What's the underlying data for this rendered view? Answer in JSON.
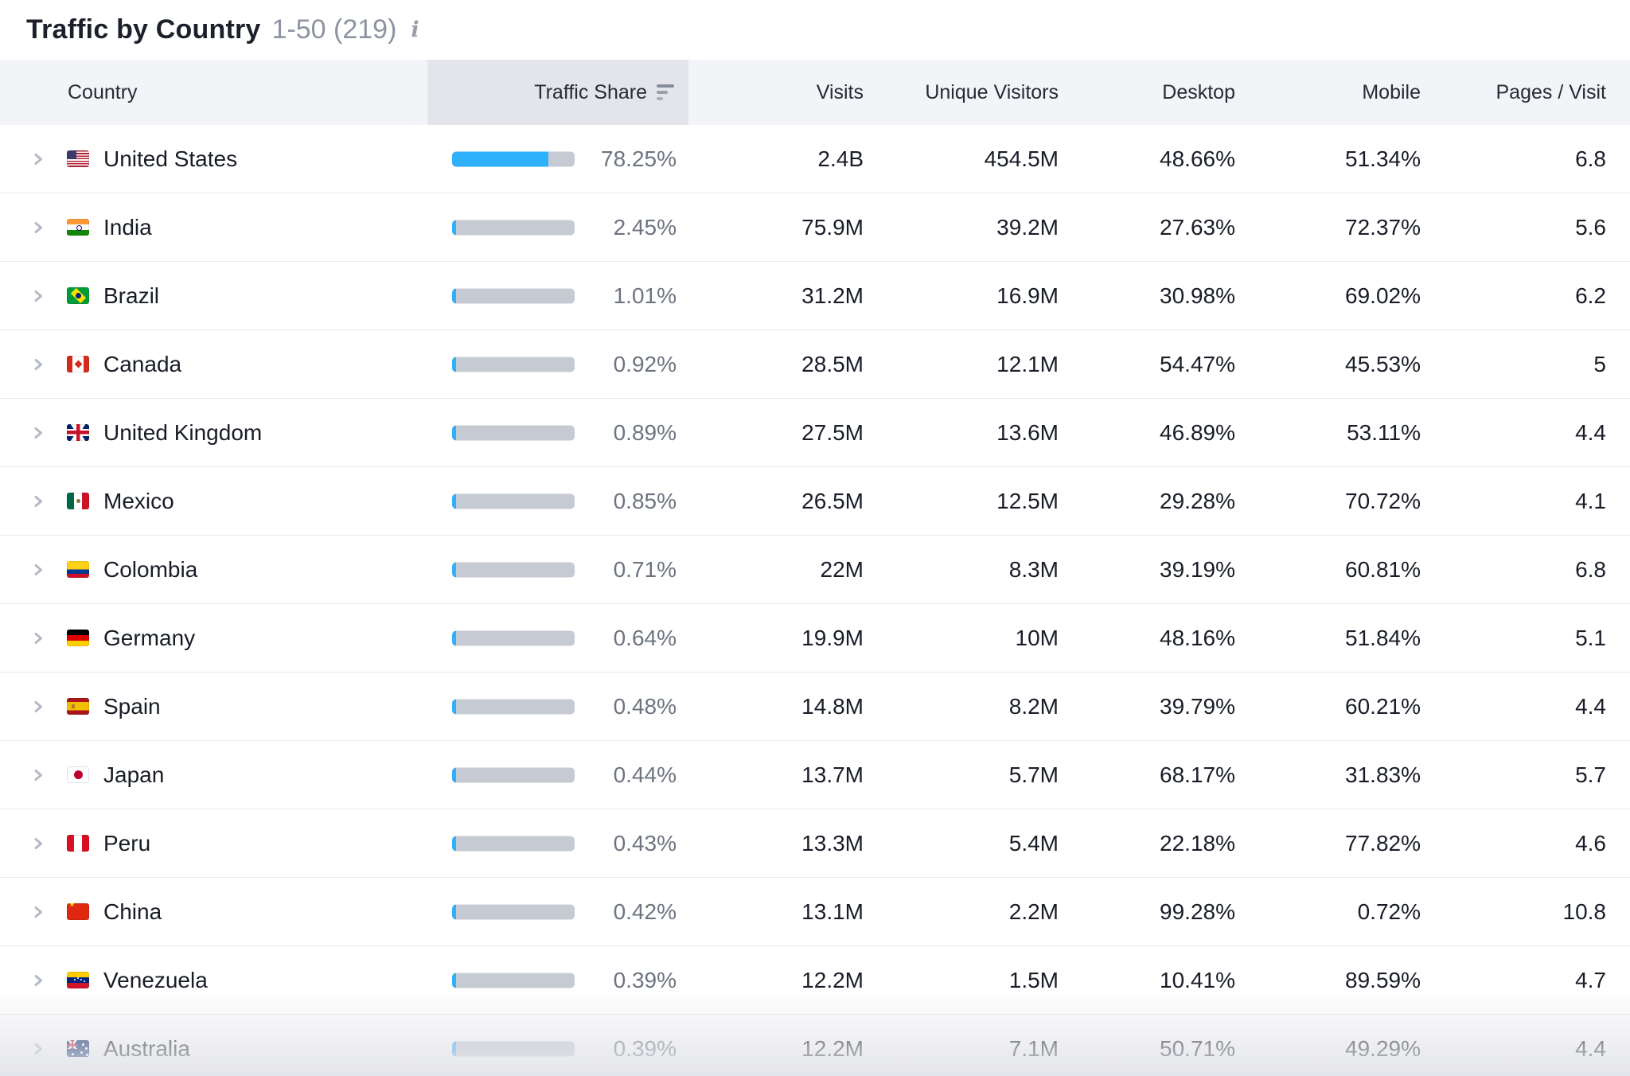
{
  "header": {
    "title": "Traffic by Country",
    "range": "1-50 (219)",
    "info_icon": "info-icon"
  },
  "table": {
    "columns": [
      {
        "key": "country",
        "label": "Country"
      },
      {
        "key": "share",
        "label": "Traffic Share",
        "sorted": "desc",
        "sort_icon": "sort-descending-bars-icon"
      },
      {
        "key": "visits",
        "label": "Visits"
      },
      {
        "key": "unique_visitors",
        "label": "Unique Visitors"
      },
      {
        "key": "desktop",
        "label": "Desktop"
      },
      {
        "key": "mobile",
        "label": "Mobile"
      },
      {
        "key": "pages_per_visit",
        "label": "Pages / Visit"
      }
    ],
    "rows": [
      {
        "country": "United States",
        "flag": "us",
        "share": "78.25%",
        "share_value": 78.25,
        "visits": "2.4B",
        "unique_visitors": "454.5M",
        "desktop": "48.66%",
        "mobile": "51.34%",
        "pages_per_visit": "6.8"
      },
      {
        "country": "India",
        "flag": "in",
        "share": "2.45%",
        "share_value": 2.45,
        "visits": "75.9M",
        "unique_visitors": "39.2M",
        "desktop": "27.63%",
        "mobile": "72.37%",
        "pages_per_visit": "5.6"
      },
      {
        "country": "Brazil",
        "flag": "br",
        "share": "1.01%",
        "share_value": 1.01,
        "visits": "31.2M",
        "unique_visitors": "16.9M",
        "desktop": "30.98%",
        "mobile": "69.02%",
        "pages_per_visit": "6.2"
      },
      {
        "country": "Canada",
        "flag": "ca",
        "share": "0.92%",
        "share_value": 0.92,
        "visits": "28.5M",
        "unique_visitors": "12.1M",
        "desktop": "54.47%",
        "mobile": "45.53%",
        "pages_per_visit": "5"
      },
      {
        "country": "United Kingdom",
        "flag": "gb",
        "share": "0.89%",
        "share_value": 0.89,
        "visits": "27.5M",
        "unique_visitors": "13.6M",
        "desktop": "46.89%",
        "mobile": "53.11%",
        "pages_per_visit": "4.4"
      },
      {
        "country": "Mexico",
        "flag": "mx",
        "share": "0.85%",
        "share_value": 0.85,
        "visits": "26.5M",
        "unique_visitors": "12.5M",
        "desktop": "29.28%",
        "mobile": "70.72%",
        "pages_per_visit": "4.1"
      },
      {
        "country": "Colombia",
        "flag": "co",
        "share": "0.71%",
        "share_value": 0.71,
        "visits": "22M",
        "unique_visitors": "8.3M",
        "desktop": "39.19%",
        "mobile": "60.81%",
        "pages_per_visit": "6.8"
      },
      {
        "country": "Germany",
        "flag": "de",
        "share": "0.64%",
        "share_value": 0.64,
        "visits": "19.9M",
        "unique_visitors": "10M",
        "desktop": "48.16%",
        "mobile": "51.84%",
        "pages_per_visit": "5.1"
      },
      {
        "country": "Spain",
        "flag": "es",
        "share": "0.48%",
        "share_value": 0.48,
        "visits": "14.8M",
        "unique_visitors": "8.2M",
        "desktop": "39.79%",
        "mobile": "60.21%",
        "pages_per_visit": "4.4"
      },
      {
        "country": "Japan",
        "flag": "jp",
        "share": "0.44%",
        "share_value": 0.44,
        "visits": "13.7M",
        "unique_visitors": "5.7M",
        "desktop": "68.17%",
        "mobile": "31.83%",
        "pages_per_visit": "5.7"
      },
      {
        "country": "Peru",
        "flag": "pe",
        "share": "0.43%",
        "share_value": 0.43,
        "visits": "13.3M",
        "unique_visitors": "5.4M",
        "desktop": "22.18%",
        "mobile": "77.82%",
        "pages_per_visit": "4.6"
      },
      {
        "country": "China",
        "flag": "cn",
        "share": "0.42%",
        "share_value": 0.42,
        "visits": "13.1M",
        "unique_visitors": "2.2M",
        "desktop": "99.28%",
        "mobile": "0.72%",
        "pages_per_visit": "10.8"
      },
      {
        "country": "Venezuela",
        "flag": "ve",
        "share": "0.39%",
        "share_value": 0.39,
        "visits": "12.2M",
        "unique_visitors": "1.5M",
        "desktop": "10.41%",
        "mobile": "89.59%",
        "pages_per_visit": "4.7"
      },
      {
        "country": "Australia",
        "flag": "au",
        "share": "0.39%",
        "share_value": 0.39,
        "visits": "12.2M",
        "unique_visitors": "7.1M",
        "desktop": "50.71%",
        "mobile": "49.29%",
        "pages_per_visit": "4.4"
      }
    ]
  },
  "colors": {
    "bar_fill": "#2fb0fb",
    "bar_track": "#c6cbd3",
    "header_bg": "#f3f4f7",
    "sorted_header_bg": "#e4e5eb",
    "row_separator": "#e8e9ed",
    "share_text": "#6d7480",
    "muted_text": "#8d93a0",
    "body_text": "#191d28"
  }
}
